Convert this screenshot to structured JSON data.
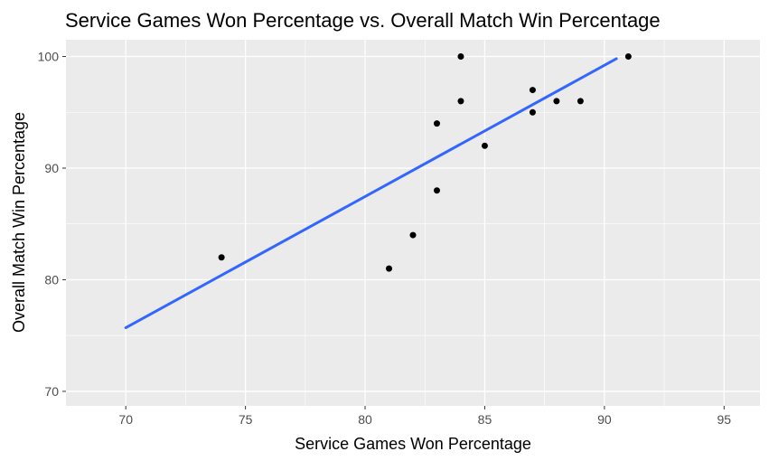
{
  "chart_data": {
    "type": "scatter",
    "title": "Service Games Won Percentage vs. Overall Match Win Percentage",
    "xlabel": "Service Games Won Percentage",
    "ylabel": "Overall Match Win Percentage",
    "xlim": [
      67.5,
      96.5
    ],
    "ylim": [
      68.7,
      101.5
    ],
    "x_ticks": [
      70,
      75,
      80,
      85,
      90,
      95
    ],
    "y_ticks": [
      70,
      80,
      90,
      100
    ],
    "grid": true,
    "points": [
      {
        "x": 74,
        "y": 82
      },
      {
        "x": 81,
        "y": 81
      },
      {
        "x": 82,
        "y": 84
      },
      {
        "x": 83,
        "y": 88
      },
      {
        "x": 83,
        "y": 94
      },
      {
        "x": 84,
        "y": 96
      },
      {
        "x": 84,
        "y": 100
      },
      {
        "x": 85,
        "y": 92
      },
      {
        "x": 87,
        "y": 95
      },
      {
        "x": 87,
        "y": 97
      },
      {
        "x": 88,
        "y": 96
      },
      {
        "x": 89,
        "y": 96
      },
      {
        "x": 91,
        "y": 100
      }
    ],
    "trend_line": {
      "x": [
        70,
        90.5
      ],
      "y": [
        75.7,
        99.8
      ]
    },
    "colors": {
      "panel": "#ebebeb",
      "grid": "#ffffff",
      "points": "#000000",
      "trend": "#3366ff"
    }
  }
}
